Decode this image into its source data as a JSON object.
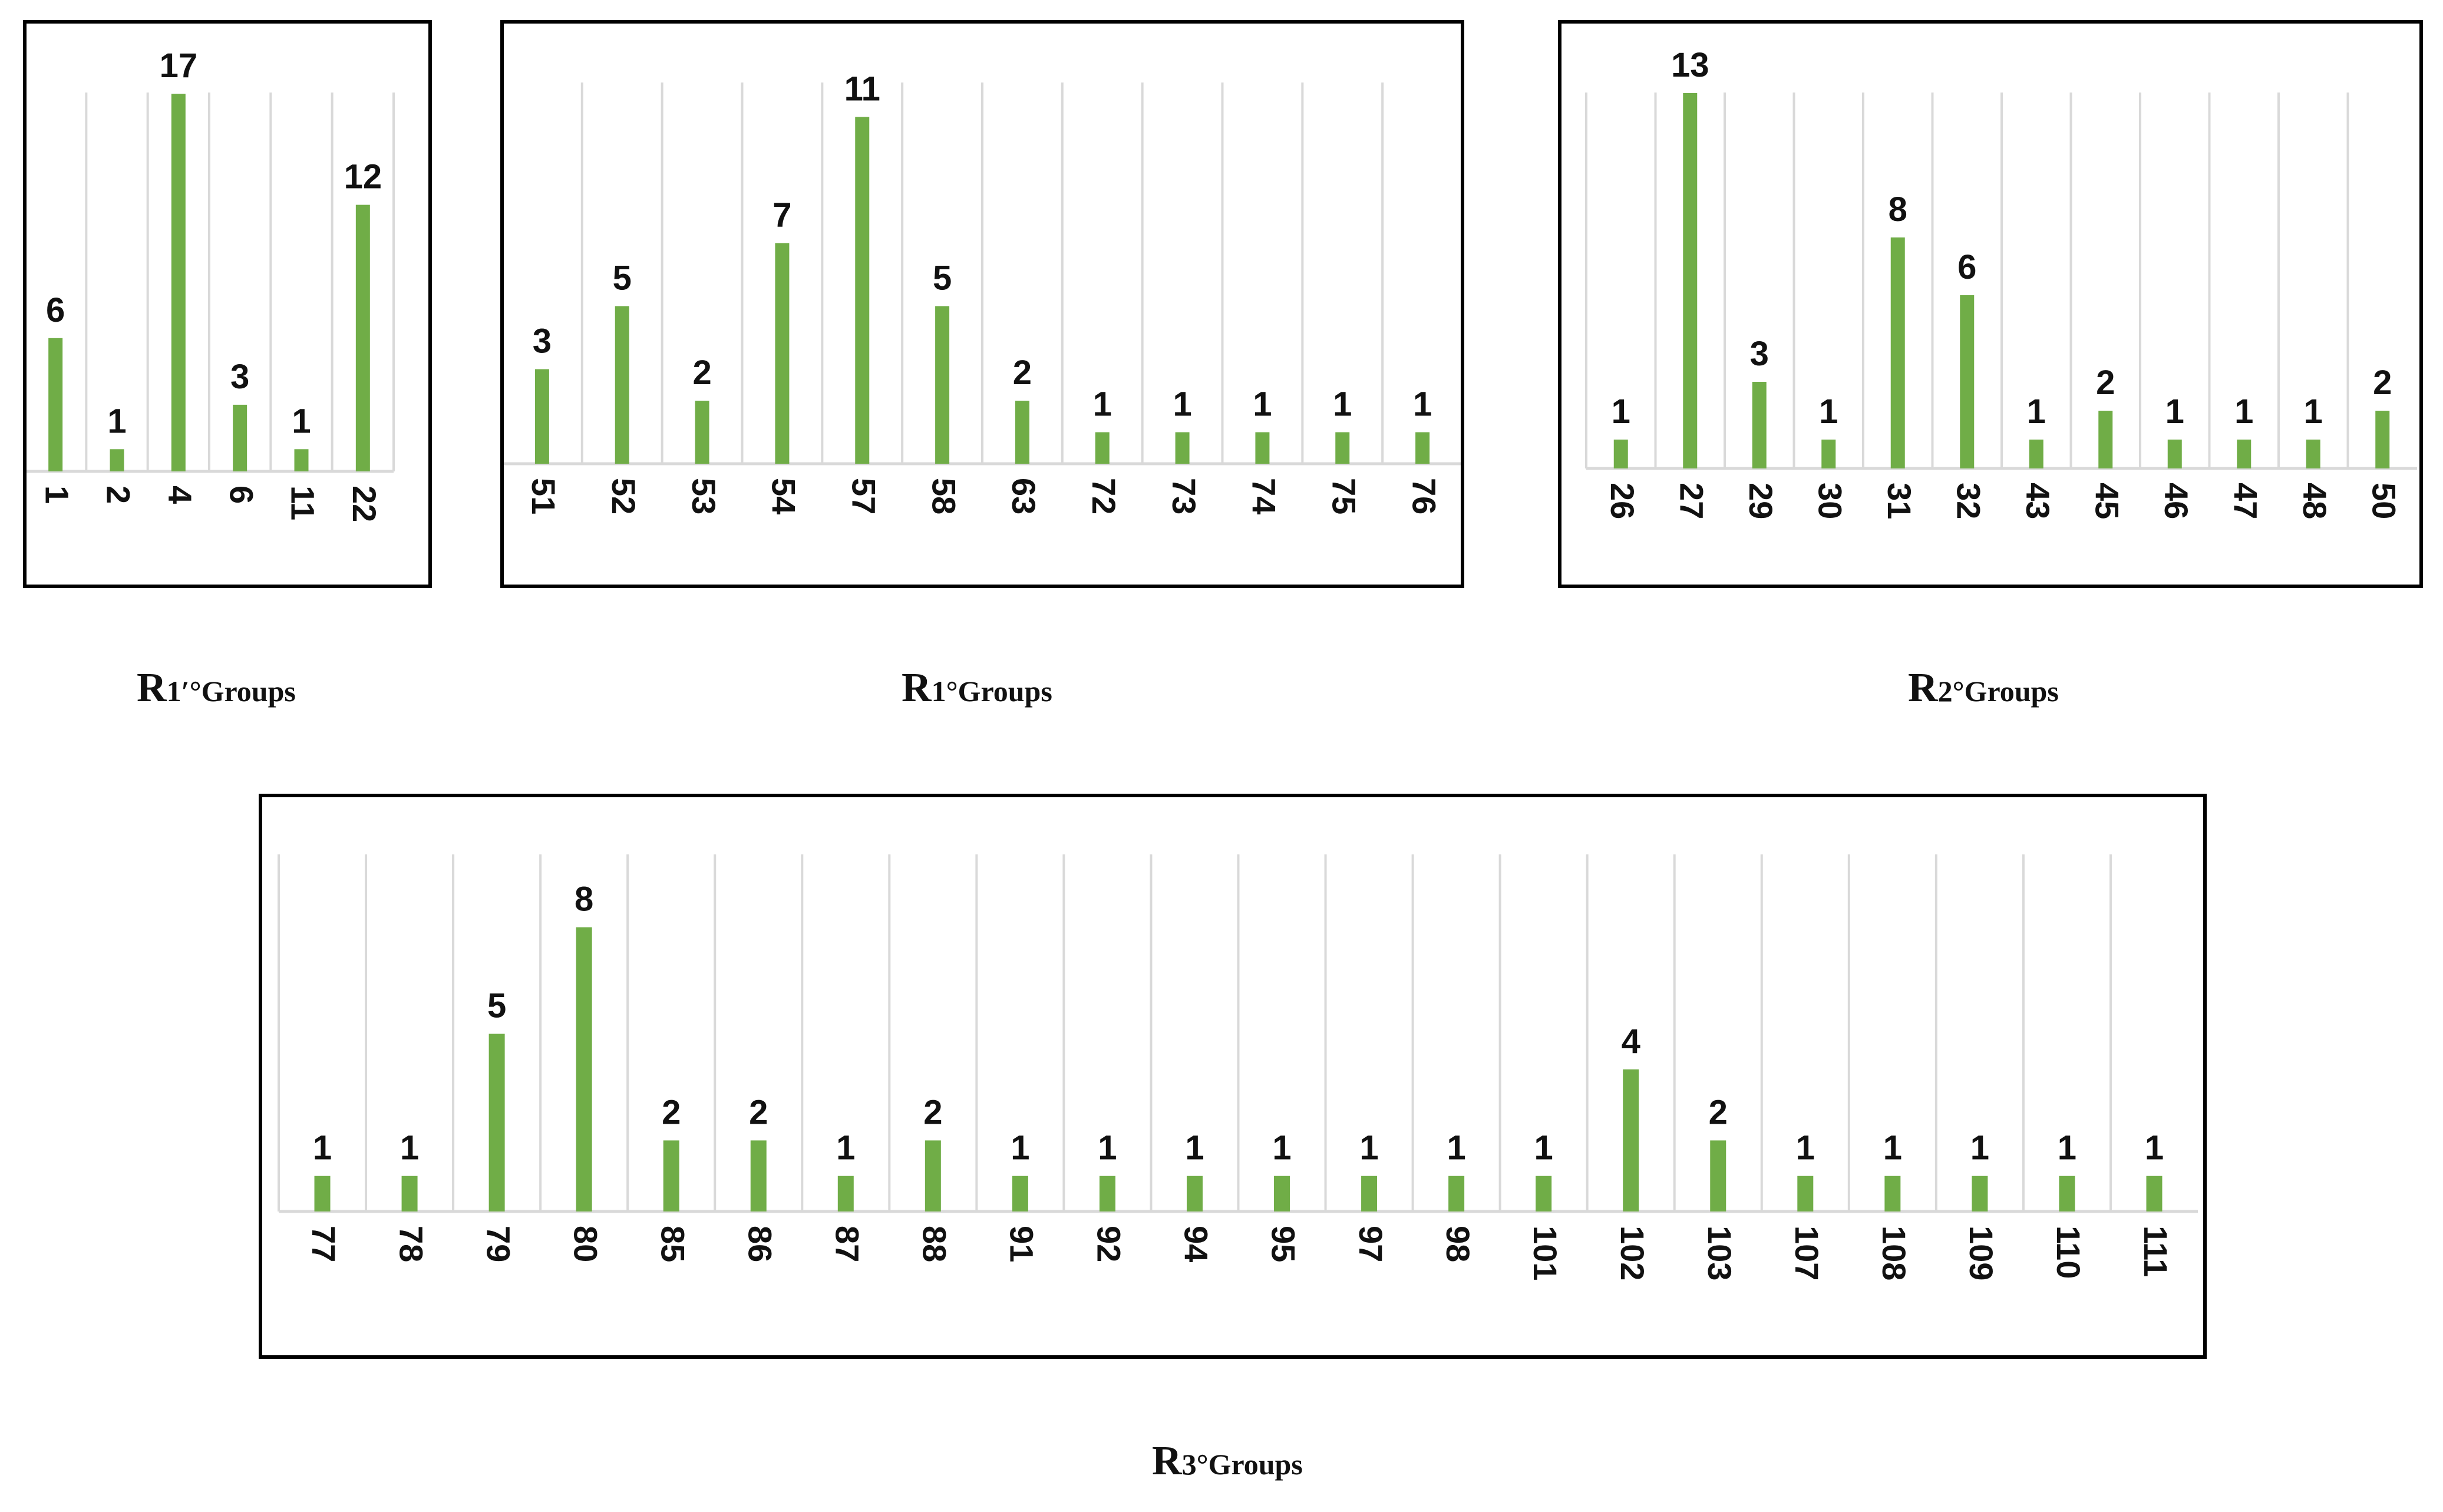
{
  "colors": {
    "bar": "#70ad47",
    "grid": "#d9d9d9",
    "axis": "#d9d9d9",
    "frame": "#000000",
    "text": "#111111"
  },
  "captions": [
    {
      "main": "R",
      "sub": "1′°Groups"
    },
    {
      "main": "R",
      "sub": "1°Groups"
    },
    {
      "main": "R",
      "sub": "2°Groups"
    },
    {
      "main": "R",
      "sub": "3°Groups"
    }
  ],
  "chart_data": [
    {
      "type": "bar",
      "grid": true,
      "legend": "none",
      "categories": [
        "1",
        "2",
        "4",
        "6",
        "11",
        "22"
      ],
      "values": [
        6,
        1,
        17,
        3,
        1,
        12
      ]
    },
    {
      "type": "bar",
      "grid": true,
      "legend": "none",
      "categories": [
        "51",
        "52",
        "53",
        "54",
        "57",
        "58",
        "63",
        "72",
        "73",
        "74",
        "75",
        "76"
      ],
      "values": [
        3,
        5,
        2,
        7,
        11,
        5,
        2,
        1,
        1,
        1,
        1,
        1
      ]
    },
    {
      "type": "bar",
      "grid": true,
      "legend": "none",
      "categories": [
        "26",
        "27",
        "29",
        "30",
        "31",
        "32",
        "43",
        "45",
        "46",
        "47",
        "48",
        "50"
      ],
      "values": [
        1,
        13,
        3,
        1,
        8,
        6,
        1,
        2,
        1,
        1,
        1,
        2
      ]
    },
    {
      "type": "bar",
      "grid": true,
      "legend": "none",
      "categories": [
        "77",
        "78",
        "79",
        "80",
        "85",
        "86",
        "87",
        "88",
        "91",
        "92",
        "94",
        "95",
        "97",
        "98",
        "101",
        "102",
        "103",
        "107",
        "108",
        "109",
        "110",
        "111"
      ],
      "values": [
        1,
        1,
        5,
        8,
        2,
        2,
        1,
        2,
        1,
        1,
        1,
        1,
        1,
        1,
        1,
        4,
        2,
        1,
        1,
        1,
        1,
        1
      ]
    }
  ]
}
